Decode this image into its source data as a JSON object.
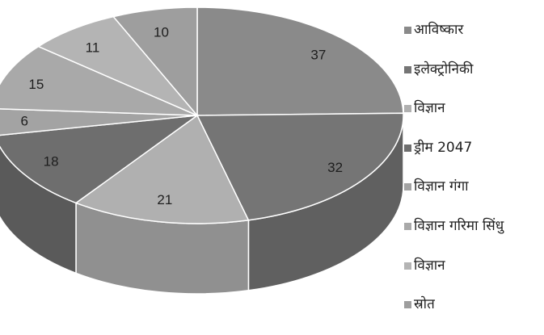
{
  "chart_data": {
    "type": "pie",
    "style": "3d",
    "categories": [
      "आविष्कार",
      "इलेक्ट्रोनिकी",
      "विज्ञान",
      "ड्रीम 2047",
      "विज्ञान गंगा",
      "विज्ञान गरिमा सिंधु",
      "विज्ञान",
      "स्रोत"
    ],
    "values": [
      37,
      32,
      21,
      18,
      6,
      15,
      11,
      10
    ],
    "colors": [
      "#8a8a8a",
      "#757575",
      "#b0b0b0",
      "#6e6e6e",
      "#a3a3a3",
      "#a9a9a9",
      "#b4b4b4",
      "#9e9e9e"
    ],
    "legend_position": "right"
  }
}
